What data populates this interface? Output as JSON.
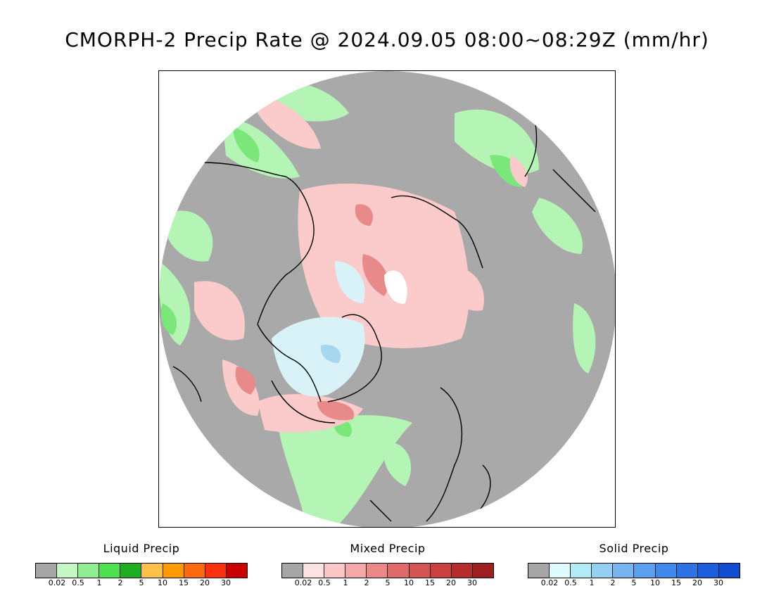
{
  "title": "CMORPH-2 Precip Rate @ 2024.09.05 08:00~08:29Z (mm/hr)",
  "map": {
    "projection": "north-polar-stereographic",
    "colors": {
      "no_precip": "#a9a9a9",
      "liquid_light": "#b4f4b4",
      "liquid_mid": "#7be77b",
      "mixed_light": "#fbcaca",
      "mixed_mid": "#e88a8a",
      "solid_light": "#d8f2f8",
      "solid_mid": "#a6d6f0",
      "coastline": "#000000"
    }
  },
  "legends": [
    {
      "title": "Liquid Precip",
      "ticks": [
        "0.02",
        "0.5",
        "1",
        "2",
        "5",
        "10",
        "15",
        "20",
        "30"
      ],
      "colors": [
        "#a6a6a6",
        "#c4f7c4",
        "#92ee92",
        "#4fe04f",
        "#1fae1f",
        "#ffc04a",
        "#ff9a00",
        "#ff6a10",
        "#ff3010",
        "#c80000"
      ]
    },
    {
      "title": "Mixed Precip",
      "ticks": [
        "0.02",
        "0.5",
        "1",
        "2",
        "5",
        "10",
        "15",
        "20",
        "30"
      ],
      "colors": [
        "#a6a6a6",
        "#ffe2e2",
        "#fcc6c6",
        "#f4a8a8",
        "#ec8888",
        "#e06a6a",
        "#d45454",
        "#c84040",
        "#b42c2c",
        "#9c2020"
      ]
    },
    {
      "title": "Solid Precip",
      "ticks": [
        "0.02",
        "0.5",
        "1",
        "2",
        "5",
        "10",
        "15",
        "20",
        "30"
      ],
      "colors": [
        "#a6a6a6",
        "#e0fbfd",
        "#b2eaf6",
        "#94cff4",
        "#78b6f2",
        "#5aa0ee",
        "#4088ea",
        "#2c72e4",
        "#1c5edc",
        "#104cd0"
      ]
    }
  ]
}
